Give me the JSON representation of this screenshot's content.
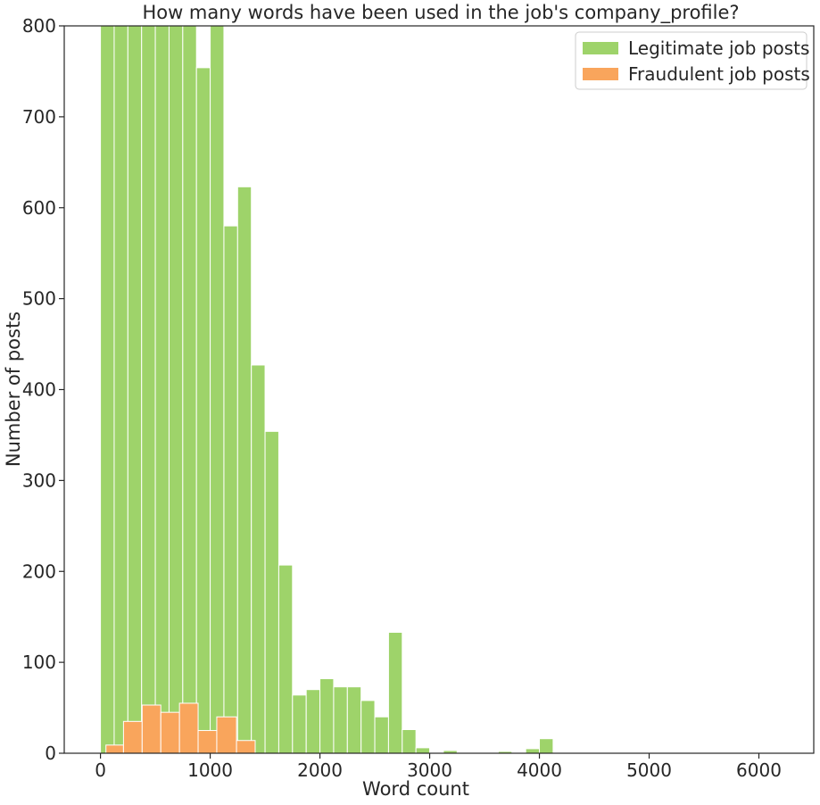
{
  "chart_data": {
    "type": "bar",
    "title": "How many words have been used in the job's company_profile?",
    "xlabel": "Word count",
    "ylabel": "Number of posts",
    "xlim": [
      -330,
      6500
    ],
    "ylim": [
      0,
      800
    ],
    "xticks": [
      0,
      1000,
      2000,
      3000,
      4000,
      5000,
      6000
    ],
    "yticks": [
      0,
      100,
      200,
      300,
      400,
      500,
      600,
      700,
      800
    ],
    "grid": false,
    "legend_position": "top-right",
    "series": [
      {
        "name": "Legitimate job posts",
        "color": "#9ed36a",
        "bins": [
          {
            "x0": 0,
            "x1": 125,
            "value": 800
          },
          {
            "x0": 125,
            "x1": 250,
            "value": 800
          },
          {
            "x0": 250,
            "x1": 375,
            "value": 800
          },
          {
            "x0": 375,
            "x1": 500,
            "value": 800
          },
          {
            "x0": 500,
            "x1": 625,
            "value": 800
          },
          {
            "x0": 625,
            "x1": 750,
            "value": 800
          },
          {
            "x0": 750,
            "x1": 875,
            "value": 800
          },
          {
            "x0": 875,
            "x1": 1000,
            "value": 754
          },
          {
            "x0": 1000,
            "x1": 1125,
            "value": 800
          },
          {
            "x0": 1125,
            "x1": 1250,
            "value": 580
          },
          {
            "x0": 1250,
            "x1": 1375,
            "value": 623
          },
          {
            "x0": 1375,
            "x1": 1500,
            "value": 427
          },
          {
            "x0": 1500,
            "x1": 1625,
            "value": 354
          },
          {
            "x0": 1625,
            "x1": 1750,
            "value": 207
          },
          {
            "x0": 1750,
            "x1": 1875,
            "value": 64
          },
          {
            "x0": 1875,
            "x1": 2000,
            "value": 70
          },
          {
            "x0": 2000,
            "x1": 2125,
            "value": 82
          },
          {
            "x0": 2125,
            "x1": 2250,
            "value": 73
          },
          {
            "x0": 2250,
            "x1": 2375,
            "value": 73
          },
          {
            "x0": 2375,
            "x1": 2500,
            "value": 58
          },
          {
            "x0": 2500,
            "x1": 2625,
            "value": 40
          },
          {
            "x0": 2625,
            "x1": 2750,
            "value": 133
          },
          {
            "x0": 2750,
            "x1": 2875,
            "value": 26
          },
          {
            "x0": 2875,
            "x1": 3000,
            "value": 6
          },
          {
            "x0": 3000,
            "x1": 3125,
            "value": 0
          },
          {
            "x0": 3125,
            "x1": 3250,
            "value": 3
          },
          {
            "x0": 3250,
            "x1": 3375,
            "value": 0
          },
          {
            "x0": 3375,
            "x1": 3500,
            "value": 0
          },
          {
            "x0": 3500,
            "x1": 3625,
            "value": 0
          },
          {
            "x0": 3625,
            "x1": 3750,
            "value": 2
          },
          {
            "x0": 3750,
            "x1": 3875,
            "value": 0
          },
          {
            "x0": 3875,
            "x1": 4000,
            "value": 5
          },
          {
            "x0": 4000,
            "x1": 4125,
            "value": 16
          }
        ]
      },
      {
        "name": "Fraudulent job posts",
        "color": "#f9a55c",
        "bins": [
          {
            "x0": 50,
            "x1": 210,
            "value": 9
          },
          {
            "x0": 210,
            "x1": 380,
            "value": 35
          },
          {
            "x0": 380,
            "x1": 550,
            "value": 53
          },
          {
            "x0": 550,
            "x1": 720,
            "value": 45
          },
          {
            "x0": 720,
            "x1": 890,
            "value": 55
          },
          {
            "x0": 890,
            "x1": 1060,
            "value": 25
          },
          {
            "x0": 1060,
            "x1": 1240,
            "value": 40
          },
          {
            "x0": 1240,
            "x1": 1410,
            "value": 14
          }
        ]
      }
    ]
  }
}
